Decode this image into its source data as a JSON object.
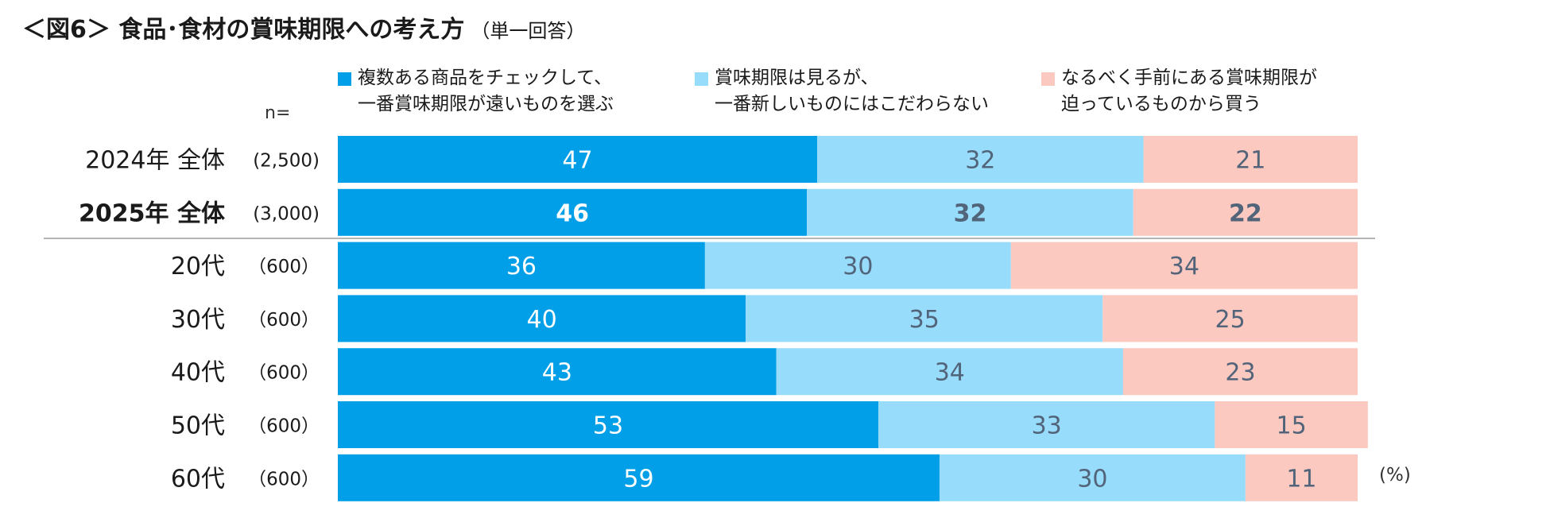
{
  "title": "＜図6＞ 食品･食材の賞味期限への考え方",
  "subtitle": "（単一回答）",
  "n_label": "n=",
  "unit_label": "(%)",
  "colors": {
    "series1": "#009FE8",
    "series2": "#97DCFB",
    "series3": "#FCC9C0",
    "label_dark": "#52647A",
    "label_light": "#ffffff"
  },
  "legend": [
    {
      "text": "複数ある商品をチェックして、\n一番賞味期限が遠いものを選ぶ"
    },
    {
      "text": "賞味期限は見るが、\n一番新しいものにはこだわらない"
    },
    {
      "text": "なるべく手前にある賞味期限が\n迫っているものから買う"
    }
  ],
  "chart_data": {
    "type": "bar",
    "orientation": "horizontal",
    "stacked": true,
    "title": "＜図6＞ 食品･食材の賞味期限への考え方（単一回答）",
    "unit": "%",
    "categories": [
      "2024年 全体",
      "2025年 全体",
      "20代",
      "30代",
      "40代",
      "50代",
      "60代"
    ],
    "n": [
      "(2,500)",
      "(3,000)",
      "（600）",
      "（600）",
      "（600）",
      "（600）",
      "（600）"
    ],
    "bold_rows": [
      false,
      true,
      false,
      false,
      false,
      false,
      false
    ],
    "series": [
      {
        "name": "複数ある商品をチェックして、一番賞味期限が遠いものを選ぶ",
        "values": [
          47,
          46,
          36,
          40,
          43,
          53,
          59
        ]
      },
      {
        "name": "賞味期限は見るが、一番新しいものにはこだわらない",
        "values": [
          32,
          32,
          30,
          35,
          34,
          33,
          30
        ]
      },
      {
        "name": "なるべく手前にある賞味期限が迫っているものから買う",
        "values": [
          21,
          22,
          34,
          25,
          23,
          15,
          11
        ]
      }
    ],
    "xlim": [
      0,
      100
    ]
  }
}
